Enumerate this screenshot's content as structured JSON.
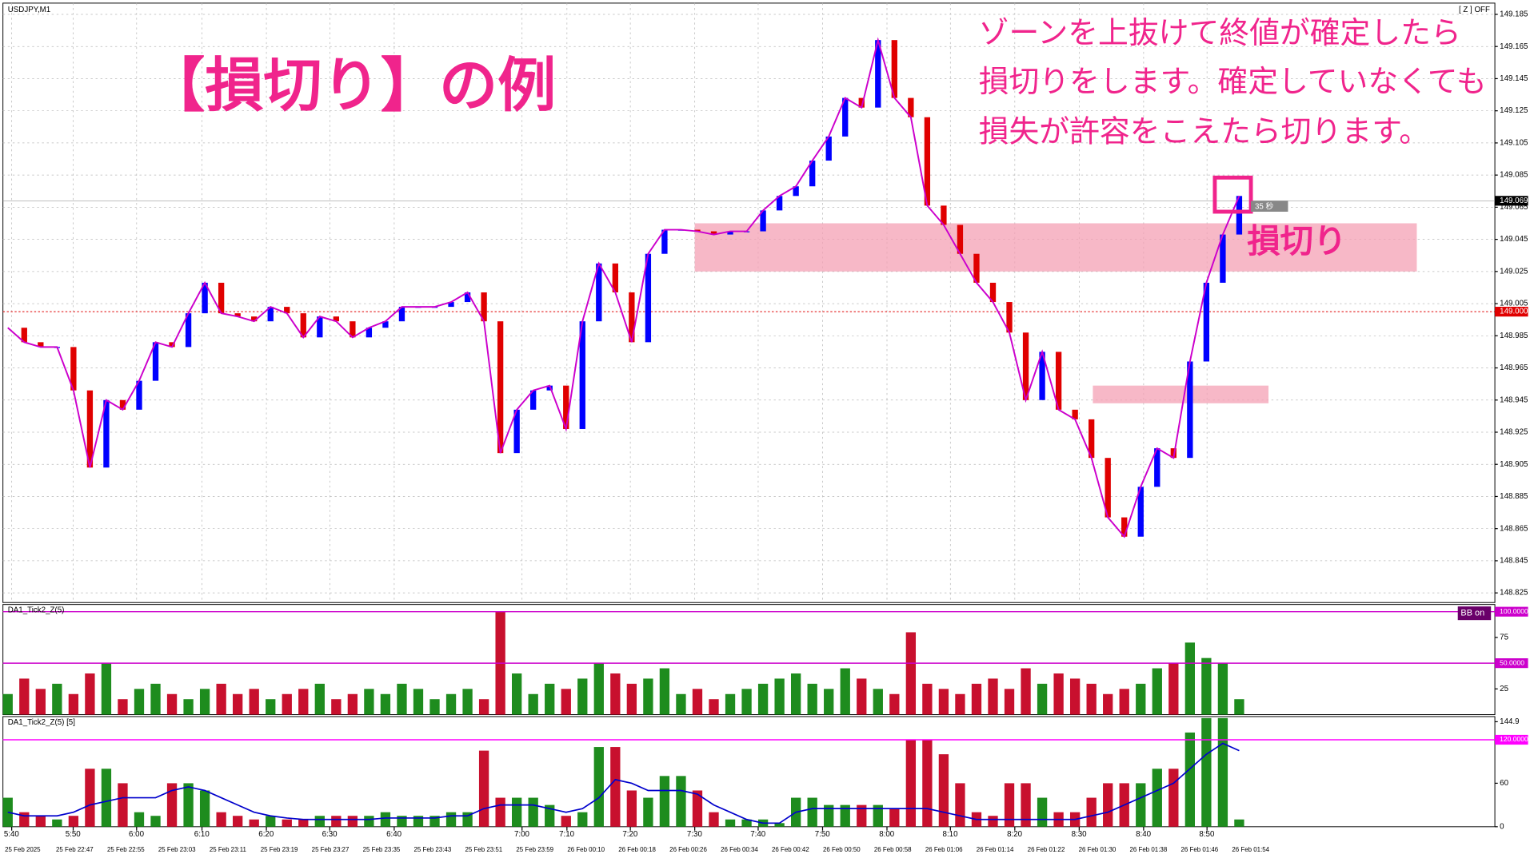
{
  "chart_data": [
    {
      "type": "line",
      "symbol": "USDJPY,M1",
      "z_status": "[ Z ] OFF",
      "title": "【損切り】の例",
      "annotation": [
        "ゾーンを上抜けて終値が確定したら",
        "損切りをします。確定していなくても",
        "損失が許容をこえたら切ります。"
      ],
      "stop_label": "損切り",
      "timer": "35 秒",
      "time_labels": [
        "5:40",
        "5:50",
        "6:00",
        "6:10",
        "6:20",
        "6:30",
        "6:40",
        "7:00",
        "7:10",
        "7:20",
        "7:30",
        "7:40",
        "7:50",
        "8:00",
        "8:10",
        "8:20",
        "8:30",
        "8:40",
        "8:50"
      ],
      "date_labels": [
        "25 Feb 2025",
        "25 Feb 22:47",
        "25 Feb 22:55",
        "25 Feb 23:03",
        "25 Feb 23:11",
        "25 Feb 23:19",
        "25 Feb 23:27",
        "25 Feb 23:35",
        "25 Feb 23:43",
        "25 Feb 23:51",
        "25 Feb 23:59",
        "26 Feb 00:10",
        "26 Feb 00:18",
        "26 Feb 00:26",
        "26 Feb 00:34",
        "26 Feb 00:42",
        "26 Feb 00:50",
        "26 Feb 00:58",
        "26 Feb 01:06",
        "26 Feb 01:14",
        "26 Feb 01:22",
        "26 Feb 01:30",
        "26 Feb 01:38",
        "26 Feb 01:46",
        "26 Feb 01:54"
      ],
      "ylim": [
        148.819,
        149.192
      ],
      "yticks": [
        149.185,
        149.165,
        149.145,
        149.125,
        149.105,
        149.085,
        149.065,
        149.045,
        149.025,
        149.005,
        148.985,
        148.965,
        148.945,
        148.925,
        148.905,
        148.885,
        148.865,
        148.845,
        148.825
      ],
      "grid": true,
      "current_price": 149.069,
      "level_line": {
        "value": 149,
        "label": "149.000"
      },
      "zones": [
        {
          "from": 149.025,
          "to": 149.055
        },
        {
          "from": 148.943,
          "to": 148.954
        }
      ],
      "series": [
        {
          "color": "#cc00cc",
          "up_color": "#0000ff",
          "down_color": "#e00000",
          "values": [
            148.99,
            148.981,
            148.978,
            148.978,
            148.951,
            148.903,
            148.945,
            148.939,
            148.957,
            148.981,
            148.978,
            148.999,
            149.018,
            148.999,
            148.997,
            148.994,
            149.003,
            148.999,
            148.984,
            148.997,
            148.994,
            148.984,
            148.99,
            148.994,
            149.003,
            149.003,
            149.003,
            149.006,
            149.012,
            148.994,
            148.912,
            148.939,
            148.951,
            148.954,
            148.927,
            148.994,
            149.03,
            149.012,
            148.981,
            149.036,
            149.051,
            149.051,
            149.05,
            149.048,
            149.05,
            149.05,
            149.063,
            149.072,
            149.078,
            149.094,
            149.109,
            149.133,
            149.127,
            149.169,
            149.133,
            149.121,
            149.066,
            149.054,
            149.036,
            149.018,
            149.006,
            148.987,
            148.945,
            148.975,
            148.939,
            148.933,
            148.909,
            148.872,
            148.86,
            148.891,
            148.915,
            148.909,
            148.969,
            149.018,
            149.048,
            149.072
          ]
        }
      ]
    },
    {
      "type": "bar",
      "title": "DA1_Tick2_Z(5)",
      "badge": "BB on",
      "ylim": [
        0,
        107
      ],
      "yticks": [
        {
          "value": 100,
          "label": "100.0000"
        },
        75,
        {
          "value": 50,
          "label": "50.0000"
        },
        25
      ],
      "levels": [
        100,
        50
      ],
      "level_color": "#cc00cc",
      "up_color": "#1e8c1e",
      "down_color": "#c8102e",
      "values": [
        20,
        35,
        25,
        30,
        20,
        40,
        50,
        15,
        25,
        30,
        20,
        15,
        25,
        30,
        20,
        25,
        15,
        20,
        25,
        30,
        15,
        20,
        25,
        20,
        30,
        25,
        15,
        20,
        25,
        15,
        100,
        40,
        20,
        30,
        25,
        35,
        50,
        40,
        30,
        35,
        45,
        20,
        25,
        15,
        20,
        25,
        30,
        35,
        40,
        30,
        25,
        45,
        35,
        25,
        20,
        80,
        30,
        25,
        20,
        30,
        35,
        25,
        45,
        30,
        40,
        35,
        30,
        20,
        25,
        30,
        45,
        50,
        70,
        55,
        50,
        15
      ]
    },
    {
      "type": "bar",
      "title": "DA1_Tick2_Z(5) [5]",
      "ylim": [
        0,
        152
      ],
      "yticks": [
        144.9,
        {
          "value": 120,
          "label": "120.0000"
        },
        60,
        0
      ],
      "levels": [
        120
      ],
      "level_color": "#ff00ff",
      "up_color": "#1e8c1e",
      "down_color": "#c8102e",
      "line_color": "#0000cc",
      "values": [
        40,
        20,
        15,
        10,
        15,
        80,
        80,
        60,
        20,
        15,
        60,
        60,
        50,
        20,
        15,
        10,
        15,
        10,
        10,
        15,
        15,
        15,
        15,
        20,
        15,
        15,
        15,
        20,
        20,
        105,
        40,
        40,
        40,
        30,
        15,
        20,
        110,
        110,
        50,
        40,
        70,
        70,
        50,
        20,
        10,
        10,
        10,
        5,
        40,
        40,
        30,
        30,
        30,
        30,
        25,
        120,
        120,
        100,
        60,
        20,
        15,
        60,
        60,
        40,
        20,
        20,
        40,
        60,
        60,
        60,
        80,
        80,
        130,
        150,
        150,
        10
      ],
      "line": [
        20,
        15,
        15,
        15,
        20,
        30,
        35,
        40,
        40,
        40,
        50,
        55,
        50,
        40,
        30,
        20,
        15,
        12,
        10,
        10,
        10,
        10,
        10,
        12,
        12,
        12,
        12,
        15,
        15,
        25,
        30,
        30,
        30,
        25,
        20,
        25,
        40,
        65,
        60,
        50,
        50,
        50,
        45,
        30,
        20,
        10,
        5,
        5,
        20,
        25,
        25,
        25,
        25,
        25,
        25,
        25,
        25,
        20,
        15,
        10,
        10,
        10,
        10,
        10,
        10,
        10,
        15,
        20,
        30,
        40,
        50,
        60,
        80,
        100,
        115,
        105
      ]
    }
  ]
}
